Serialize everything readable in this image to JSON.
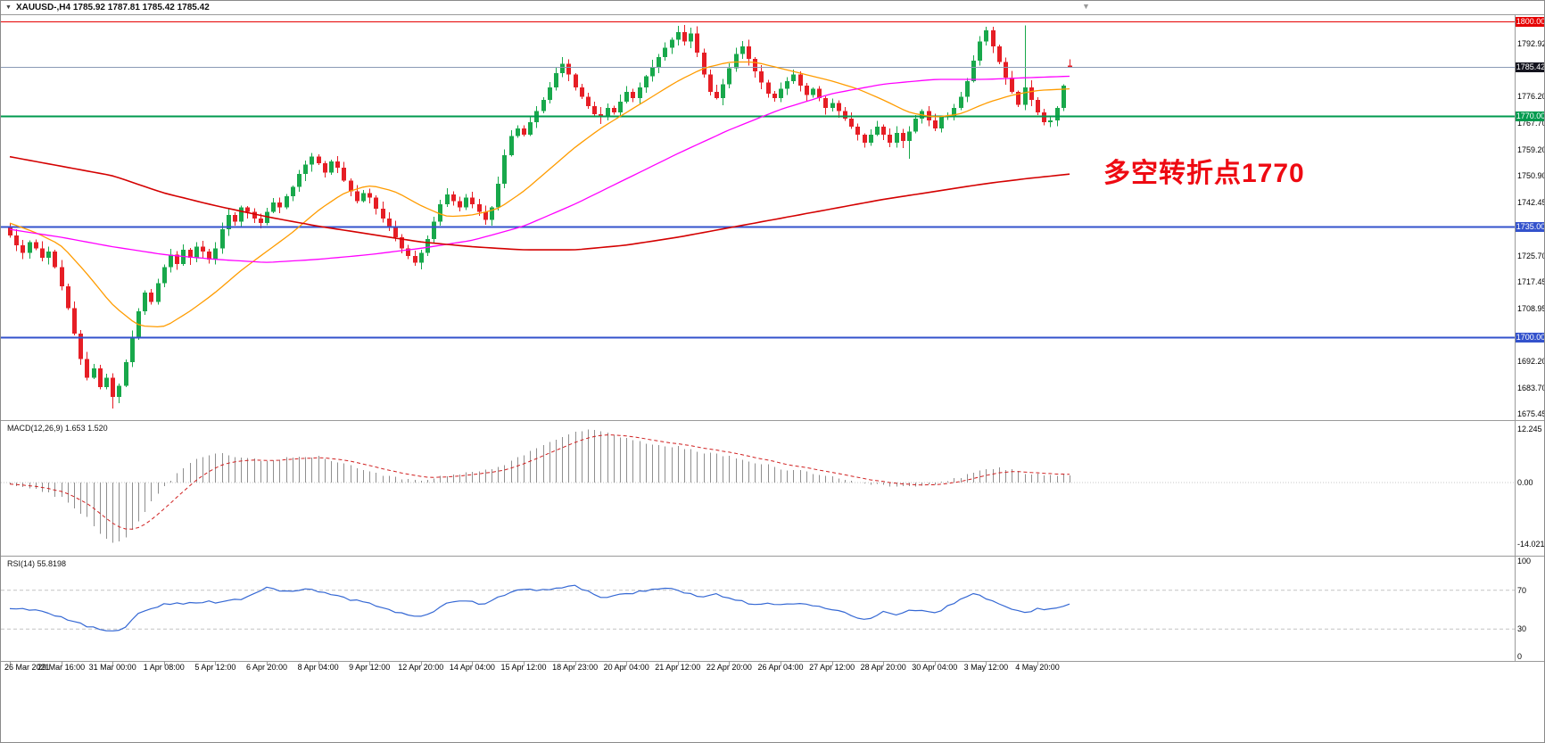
{
  "header": {
    "dropdown_icon": "▼",
    "shift_icon": "▼",
    "symbol": "XAUUSD-",
    "timeframe": "H4",
    "quote": "XAUUSD-,H4  1785.92 1787.81 1785.42 1785.42",
    "ohlc": {
      "open": "1785.92",
      "high": "1787.81",
      "low": "1785.42",
      "close": "1785.42"
    }
  },
  "indicators": {
    "macd": {
      "label": "MACD(12,26,9)",
      "main_value": "1.653",
      "signal_value": "1.520",
      "scale_max": "12.245",
      "scale_zero": "0.00",
      "scale_min": "-14.021"
    },
    "rsi": {
      "label": "RSI(14)",
      "value": "55.8198",
      "scale": [
        "100",
        "70",
        "30",
        "0"
      ]
    }
  },
  "annotation": {
    "text": "多空转折点1770",
    "color": "#ee0a12"
  },
  "price_scale": {
    "ticks": [
      1792.92,
      1776.2,
      1767.7,
      1759.2,
      1750.9,
      1742.45,
      1725.7,
      1717.45,
      1708.95,
      1692.2,
      1683.7,
      1675.45
    ]
  },
  "chart_data": {
    "type": "candlestick",
    "symbol": "XAUUSD-",
    "timeframe": "H4",
    "bars": 166,
    "ylim": [
      1674,
      1802
    ],
    "grid": false,
    "current_quote": {
      "open": 1785.92,
      "high": 1787.81,
      "low": 1785.42,
      "close": 1785.42
    },
    "up_color": "#18a84b",
    "down_color": "#e61e25",
    "closes": [
      1732,
      1729,
      1726.5,
      1730,
      1728,
      1725,
      1727,
      1722,
      1716,
      1709,
      1701,
      1693,
      1687,
      1690,
      1684,
      1687,
      1681,
      1684.5,
      1692,
      1700,
      1708,
      1714,
      1711,
      1717,
      1722,
      1726,
      1723,
      1727.5,
      1725,
      1728.5,
      1727,
      1724.5,
      1728,
      1734,
      1738.5,
      1736.5,
      1741,
      1739.5,
      1737.5,
      1736,
      1739.5,
      1742.5,
      1741,
      1744.5,
      1747.5,
      1751.5,
      1754.5,
      1757,
      1755,
      1752,
      1755.5,
      1753.5,
      1749.5,
      1746,
      1743,
      1745.5,
      1744,
      1740.5,
      1737.5,
      1734.5,
      1731.5,
      1728,
      1725.5,
      1723.5,
      1726.5,
      1731,
      1736.5,
      1742,
      1745,
      1743,
      1741,
      1744,
      1742,
      1739.5,
      1737,
      1741,
      1748.5,
      1757.5,
      1763.5,
      1766,
      1764,
      1768,
      1771.5,
      1775,
      1779,
      1783.5,
      1786.5,
      1783,
      1779,
      1776,
      1773,
      1770.5,
      1769.5,
      1772.5,
      1771,
      1774.5,
      1777.5,
      1775.5,
      1779,
      1782.5,
      1785.5,
      1788.5,
      1791.5,
      1794,
      1796.5,
      1793.5,
      1796,
      1790,
      1783,
      1777.5,
      1775.5,
      1780,
      1785,
      1789.5,
      1792,
      1788,
      1784,
      1780.5,
      1777,
      1775.5,
      1778.5,
      1781,
      1783,
      1779.5,
      1776.5,
      1778.5,
      1775.5,
      1772.5,
      1774,
      1771.5,
      1769,
      1766.5,
      1764,
      1761.5,
      1764,
      1766.5,
      1764,
      1761.5,
      1764.5,
      1762,
      1765,
      1769,
      1771.5,
      1768.5,
      1766,
      1769.5,
      1770,
      1772.5,
      1776,
      1781,
      1787.5,
      1793.5,
      1797,
      1792,
      1787,
      1782,
      1777.5,
      1773.5,
      1779,
      1775,
      1771,
      1768,
      1768.5,
      1772.5,
      1779.5,
      1785.42
    ],
    "spikes": {
      "16": {
        "low": 1677.2
      },
      "140": {
        "low": 1756.4
      },
      "152": {
        "high": 1798.2
      },
      "158": {
        "high": 1798.6
      },
      "165": {
        "open": 1785.92,
        "high": 1787.81,
        "low": 1785.42,
        "close": 1785.42
      }
    },
    "horizontal_lines": [
      {
        "price": 1800.0,
        "color": "#e60000",
        "width": 1,
        "label": "1800.00",
        "badge_bg": "#e60000"
      },
      {
        "price": 1785.42,
        "color": "#8a9ab5",
        "width": 1,
        "label": "1785.42",
        "badge_bg": "#14141e",
        "role": "current-price"
      },
      {
        "price": 1770.0,
        "color": "#009a4e",
        "width": 2,
        "label": "1770.00",
        "badge_bg": "#009a4e"
      },
      {
        "price": 1735.0,
        "color": "#3352cc",
        "width": 2,
        "label": "1735.00",
        "badge_bg": "#3352cc"
      },
      {
        "price": 1700.0,
        "color": "#3352cc",
        "width": 2,
        "label": "1700.00",
        "badge_bg": "#3352cc"
      }
    ],
    "moving_averages": [
      {
        "name": "ma-fast",
        "color": "#ff9c00",
        "width": 1.3,
        "points": [
          [
            0,
            1736
          ],
          [
            4,
            1733
          ],
          [
            8,
            1729
          ],
          [
            12,
            1720
          ],
          [
            16,
            1710
          ],
          [
            20,
            1703.5
          ],
          [
            24,
            1703
          ],
          [
            28,
            1708
          ],
          [
            32,
            1714
          ],
          [
            36,
            1721
          ],
          [
            40,
            1727
          ],
          [
            44,
            1733
          ],
          [
            48,
            1740
          ],
          [
            52,
            1745.5
          ],
          [
            56,
            1748
          ],
          [
            60,
            1746
          ],
          [
            64,
            1741.5
          ],
          [
            68,
            1738
          ],
          [
            72,
            1738.5
          ],
          [
            76,
            1740.5
          ],
          [
            80,
            1746
          ],
          [
            84,
            1753
          ],
          [
            88,
            1760
          ],
          [
            92,
            1766
          ],
          [
            96,
            1771
          ],
          [
            100,
            1776
          ],
          [
            104,
            1781
          ],
          [
            108,
            1785
          ],
          [
            112,
            1787
          ],
          [
            116,
            1787
          ],
          [
            120,
            1785
          ],
          [
            124,
            1783
          ],
          [
            128,
            1781
          ],
          [
            132,
            1778.5
          ],
          [
            136,
            1775
          ],
          [
            140,
            1771
          ],
          [
            144,
            1769.5
          ],
          [
            148,
            1770.5
          ],
          [
            152,
            1774
          ],
          [
            156,
            1776.5
          ],
          [
            160,
            1778
          ],
          [
            165,
            1778.5
          ]
        ]
      },
      {
        "name": "ma-mid",
        "color": "#ff00ff",
        "width": 1.3,
        "points": [
          [
            0,
            1734
          ],
          [
            8,
            1731.5
          ],
          [
            16,
            1728.5
          ],
          [
            24,
            1726
          ],
          [
            32,
            1724.5
          ],
          [
            40,
            1723.5
          ],
          [
            48,
            1724.5
          ],
          [
            56,
            1726
          ],
          [
            64,
            1728
          ],
          [
            72,
            1730.5
          ],
          [
            80,
            1735
          ],
          [
            88,
            1742
          ],
          [
            96,
            1750
          ],
          [
            104,
            1758
          ],
          [
            112,
            1765.5
          ],
          [
            120,
            1772
          ],
          [
            128,
            1777
          ],
          [
            136,
            1780
          ],
          [
            144,
            1781.5
          ],
          [
            152,
            1781.5
          ],
          [
            158,
            1782
          ],
          [
            165,
            1782.5
          ]
        ]
      },
      {
        "name": "ma-slow",
        "color": "#d40000",
        "width": 1.6,
        "points": [
          [
            0,
            1757
          ],
          [
            8,
            1754
          ],
          [
            16,
            1751
          ],
          [
            24,
            1745.5
          ],
          [
            32,
            1741.5
          ],
          [
            40,
            1738
          ],
          [
            48,
            1735
          ],
          [
            56,
            1732.5
          ],
          [
            64,
            1730
          ],
          [
            72,
            1728.5
          ],
          [
            80,
            1727.5
          ],
          [
            88,
            1727.5
          ],
          [
            96,
            1729
          ],
          [
            104,
            1731.5
          ],
          [
            112,
            1734.5
          ],
          [
            120,
            1737.5
          ],
          [
            128,
            1740.5
          ],
          [
            136,
            1743.5
          ],
          [
            144,
            1746
          ],
          [
            152,
            1748.5
          ],
          [
            158,
            1750
          ],
          [
            165,
            1751.5
          ]
        ]
      }
    ],
    "x_labels": [
      "26 Mar 2021",
      "29 Mar 16:00",
      "31 Mar 00:00",
      "1 Apr 08:00",
      "5 Apr 12:00",
      "6 Apr 20:00",
      "8 Apr 04:00",
      "9 Apr 12:00",
      "12 Apr 20:00",
      "14 Apr 04:00",
      "15 Apr 12:00",
      "18 Apr 23:00",
      "20 Apr 04:00",
      "21 Apr 12:00",
      "22 Apr 20:00",
      "26 Apr 04:00",
      "27 Apr 12:00",
      "28 Apr 20:00",
      "30 Apr 04:00",
      "3 May 12:00",
      "4 May 20:00"
    ],
    "bars_per_label": 8,
    "macd": {
      "main": 1.653,
      "signal": 1.52,
      "scale_max": 12.245,
      "scale_min": -14.021,
      "histogram_color": "#8f8f8f",
      "signal_color": "#d02020",
      "anchors": [
        [
          0,
          -0.5
        ],
        [
          4,
          -1.5
        ],
        [
          8,
          -3.5
        ],
        [
          12,
          -8
        ],
        [
          14,
          -11.5
        ],
        [
          16,
          -14
        ],
        [
          18,
          -12.5
        ],
        [
          20,
          -9
        ],
        [
          22,
          -4.5
        ],
        [
          24,
          -1
        ],
        [
          26,
          2
        ],
        [
          28,
          4.5
        ],
        [
          30,
          6
        ],
        [
          32,
          6.8
        ],
        [
          36,
          5.8
        ],
        [
          40,
          5
        ],
        [
          44,
          5.8
        ],
        [
          48,
          6
        ],
        [
          52,
          4.2
        ],
        [
          56,
          2.4
        ],
        [
          60,
          1.2
        ],
        [
          64,
          0.4
        ],
        [
          68,
          1.6
        ],
        [
          72,
          2.4
        ],
        [
          76,
          3.4
        ],
        [
          80,
          6.5
        ],
        [
          84,
          9
        ],
        [
          88,
          11.6
        ],
        [
          90,
          12.2
        ],
        [
          92,
          11.8
        ],
        [
          96,
          10.2
        ],
        [
          100,
          8.6
        ],
        [
          104,
          8.2
        ],
        [
          108,
          6.8
        ],
        [
          112,
          6
        ],
        [
          116,
          4.6
        ],
        [
          120,
          3.2
        ],
        [
          124,
          2.4
        ],
        [
          128,
          1.2
        ],
        [
          132,
          0
        ],
        [
          136,
          -0.8
        ],
        [
          140,
          -0.8
        ],
        [
          144,
          -0.4
        ],
        [
          148,
          1.2
        ],
        [
          152,
          3.2
        ],
        [
          154,
          3.4
        ],
        [
          158,
          2.2
        ],
        [
          162,
          1.7
        ],
        [
          165,
          1.653
        ]
      ]
    },
    "rsi": {
      "value": 55.8198,
      "levels": [
        70,
        30
      ],
      "line_color": "#3568d4",
      "level_color": "#c4c4c4",
      "anchors": [
        [
          0,
          52
        ],
        [
          4,
          50
        ],
        [
          8,
          42
        ],
        [
          12,
          33
        ],
        [
          14,
          30
        ],
        [
          16,
          27
        ],
        [
          18,
          33
        ],
        [
          20,
          45
        ],
        [
          24,
          56
        ],
        [
          28,
          57
        ],
        [
          32,
          58
        ],
        [
          36,
          60
        ],
        [
          38,
          66
        ],
        [
          40,
          73
        ],
        [
          42,
          70
        ],
        [
          44,
          68
        ],
        [
          46,
          71
        ],
        [
          48,
          69
        ],
        [
          52,
          62
        ],
        [
          56,
          56
        ],
        [
          60,
          48
        ],
        [
          64,
          42
        ],
        [
          66,
          48
        ],
        [
          68,
          56
        ],
        [
          70,
          60
        ],
        [
          72,
          58
        ],
        [
          74,
          55
        ],
        [
          76,
          62
        ],
        [
          78,
          68
        ],
        [
          80,
          70
        ],
        [
          84,
          71
        ],
        [
          86,
          72
        ],
        [
          88,
          74
        ],
        [
          90,
          70
        ],
        [
          92,
          63
        ],
        [
          94,
          64
        ],
        [
          96,
          66
        ],
        [
          100,
          70
        ],
        [
          102,
          72
        ],
        [
          104,
          70
        ],
        [
          108,
          62
        ],
        [
          110,
          66
        ],
        [
          112,
          62
        ],
        [
          116,
          55
        ],
        [
          120,
          56
        ],
        [
          124,
          55
        ],
        [
          128,
          50
        ],
        [
          132,
          42
        ],
        [
          134,
          40
        ],
        [
          136,
          48
        ],
        [
          138,
          45
        ],
        [
          140,
          50
        ],
        [
          144,
          46
        ],
        [
          148,
          60
        ],
        [
          150,
          66
        ],
        [
          152,
          62
        ],
        [
          156,
          50
        ],
        [
          158,
          46
        ],
        [
          160,
          52
        ],
        [
          162,
          50
        ],
        [
          165,
          55.8
        ]
      ]
    }
  }
}
